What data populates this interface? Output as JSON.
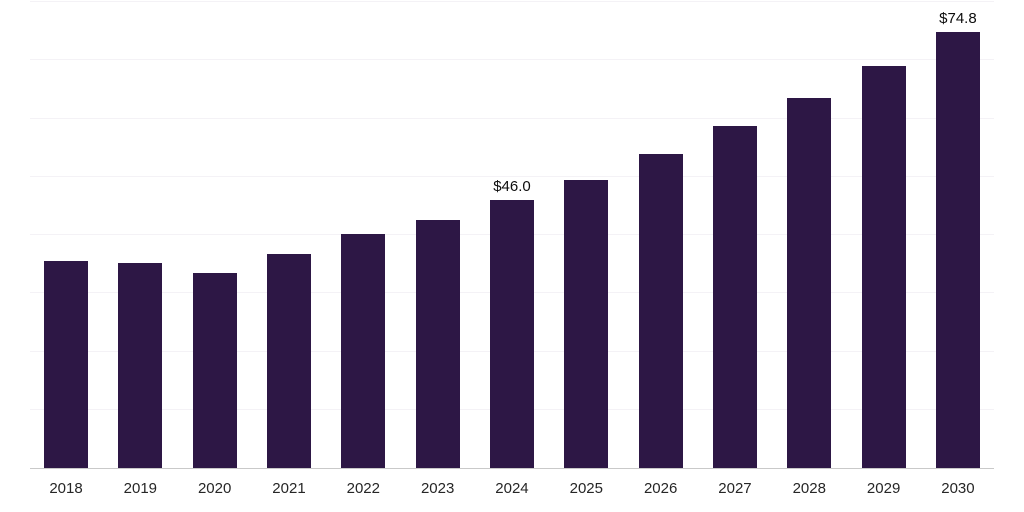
{
  "chart_data": {
    "type": "bar",
    "title": "",
    "xlabel": "",
    "ylabel": "",
    "categories": [
      "2018",
      "2019",
      "2020",
      "2021",
      "2022",
      "2023",
      "2024",
      "2025",
      "2026",
      "2027",
      "2028",
      "2029",
      "2030"
    ],
    "values": [
      35.5,
      35.2,
      33.5,
      36.8,
      40.2,
      42.6,
      46.0,
      49.4,
      53.9,
      58.7,
      63.5,
      69.0,
      74.8
    ],
    "value_labels": [
      "",
      "",
      "",
      "",
      "",
      "",
      "$46.0",
      "",
      "",
      "",
      "",
      "",
      "$74.8"
    ],
    "ylim": [
      0,
      80
    ],
    "grid": true,
    "grid_step": 10,
    "legend": false,
    "bar_color": "#2d1745",
    "gridline_color": "#f4f2f6",
    "axis_line_color": "#c9c9c9",
    "tick_label_color": "#262626",
    "value_label_color": "#0d0d0d"
  }
}
